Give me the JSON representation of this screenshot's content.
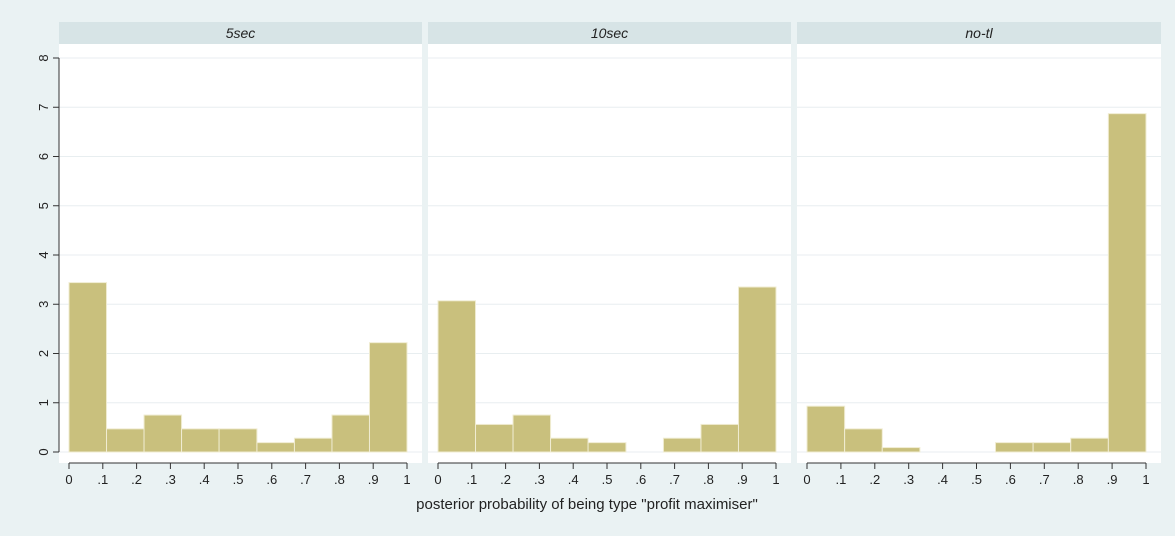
{
  "chart_data": {
    "type": "bar",
    "xlabel": "posterior probability of being type \"profit maximiser\"",
    "ylabel": "",
    "ylim": [
      0,
      8
    ],
    "yticks": [
      "0",
      "1",
      "2",
      "3",
      "4",
      "5",
      "6",
      "7",
      "8"
    ],
    "xlim": [
      0,
      1
    ],
    "xticks": [
      "0",
      ".1",
      ".2",
      ".3",
      ".4",
      ".5",
      ".6",
      ".7",
      ".8",
      ".9",
      "1"
    ],
    "grid": true,
    "colors": {
      "bar": "#c9c07d",
      "bar_edge": "#f0ecd2",
      "plot_bg": "#ffffff",
      "strip_bg": "#d7e4e6",
      "outer_bg": "#eaf2f3"
    },
    "panels": [
      {
        "title": "5sec",
        "bins": [
          {
            "x0": 0.0,
            "x1": 0.111,
            "value": 3.44
          },
          {
            "x0": 0.111,
            "x1": 0.222,
            "value": 0.47
          },
          {
            "x0": 0.222,
            "x1": 0.333,
            "value": 0.75
          },
          {
            "x0": 0.333,
            "x1": 0.444,
            "value": 0.47
          },
          {
            "x0": 0.444,
            "x1": 0.556,
            "value": 0.47
          },
          {
            "x0": 0.556,
            "x1": 0.667,
            "value": 0.19
          },
          {
            "x0": 0.667,
            "x1": 0.778,
            "value": 0.28
          },
          {
            "x0": 0.778,
            "x1": 0.889,
            "value": 0.75
          },
          {
            "x0": 0.889,
            "x1": 1.0,
            "value": 2.22
          }
        ]
      },
      {
        "title": "10sec",
        "bins": [
          {
            "x0": 0.0,
            "x1": 0.111,
            "value": 3.07
          },
          {
            "x0": 0.111,
            "x1": 0.222,
            "value": 0.56
          },
          {
            "x0": 0.222,
            "x1": 0.333,
            "value": 0.75
          },
          {
            "x0": 0.333,
            "x1": 0.444,
            "value": 0.28
          },
          {
            "x0": 0.444,
            "x1": 0.556,
            "value": 0.19
          },
          {
            "x0": 0.556,
            "x1": 0.667,
            "value": 0.0
          },
          {
            "x0": 0.667,
            "x1": 0.778,
            "value": 0.28
          },
          {
            "x0": 0.778,
            "x1": 0.889,
            "value": 0.56
          },
          {
            "x0": 0.889,
            "x1": 1.0,
            "value": 3.35
          }
        ]
      },
      {
        "title": "no-tl",
        "bins": [
          {
            "x0": 0.0,
            "x1": 0.111,
            "value": 0.93
          },
          {
            "x0": 0.111,
            "x1": 0.222,
            "value": 0.47
          },
          {
            "x0": 0.222,
            "x1": 0.333,
            "value": 0.09
          },
          {
            "x0": 0.333,
            "x1": 0.444,
            "value": 0.0
          },
          {
            "x0": 0.444,
            "x1": 0.556,
            "value": 0.0
          },
          {
            "x0": 0.556,
            "x1": 0.667,
            "value": 0.19
          },
          {
            "x0": 0.667,
            "x1": 0.778,
            "value": 0.19
          },
          {
            "x0": 0.778,
            "x1": 0.889,
            "value": 0.28
          },
          {
            "x0": 0.889,
            "x1": 1.0,
            "value": 6.87
          }
        ]
      }
    ]
  }
}
